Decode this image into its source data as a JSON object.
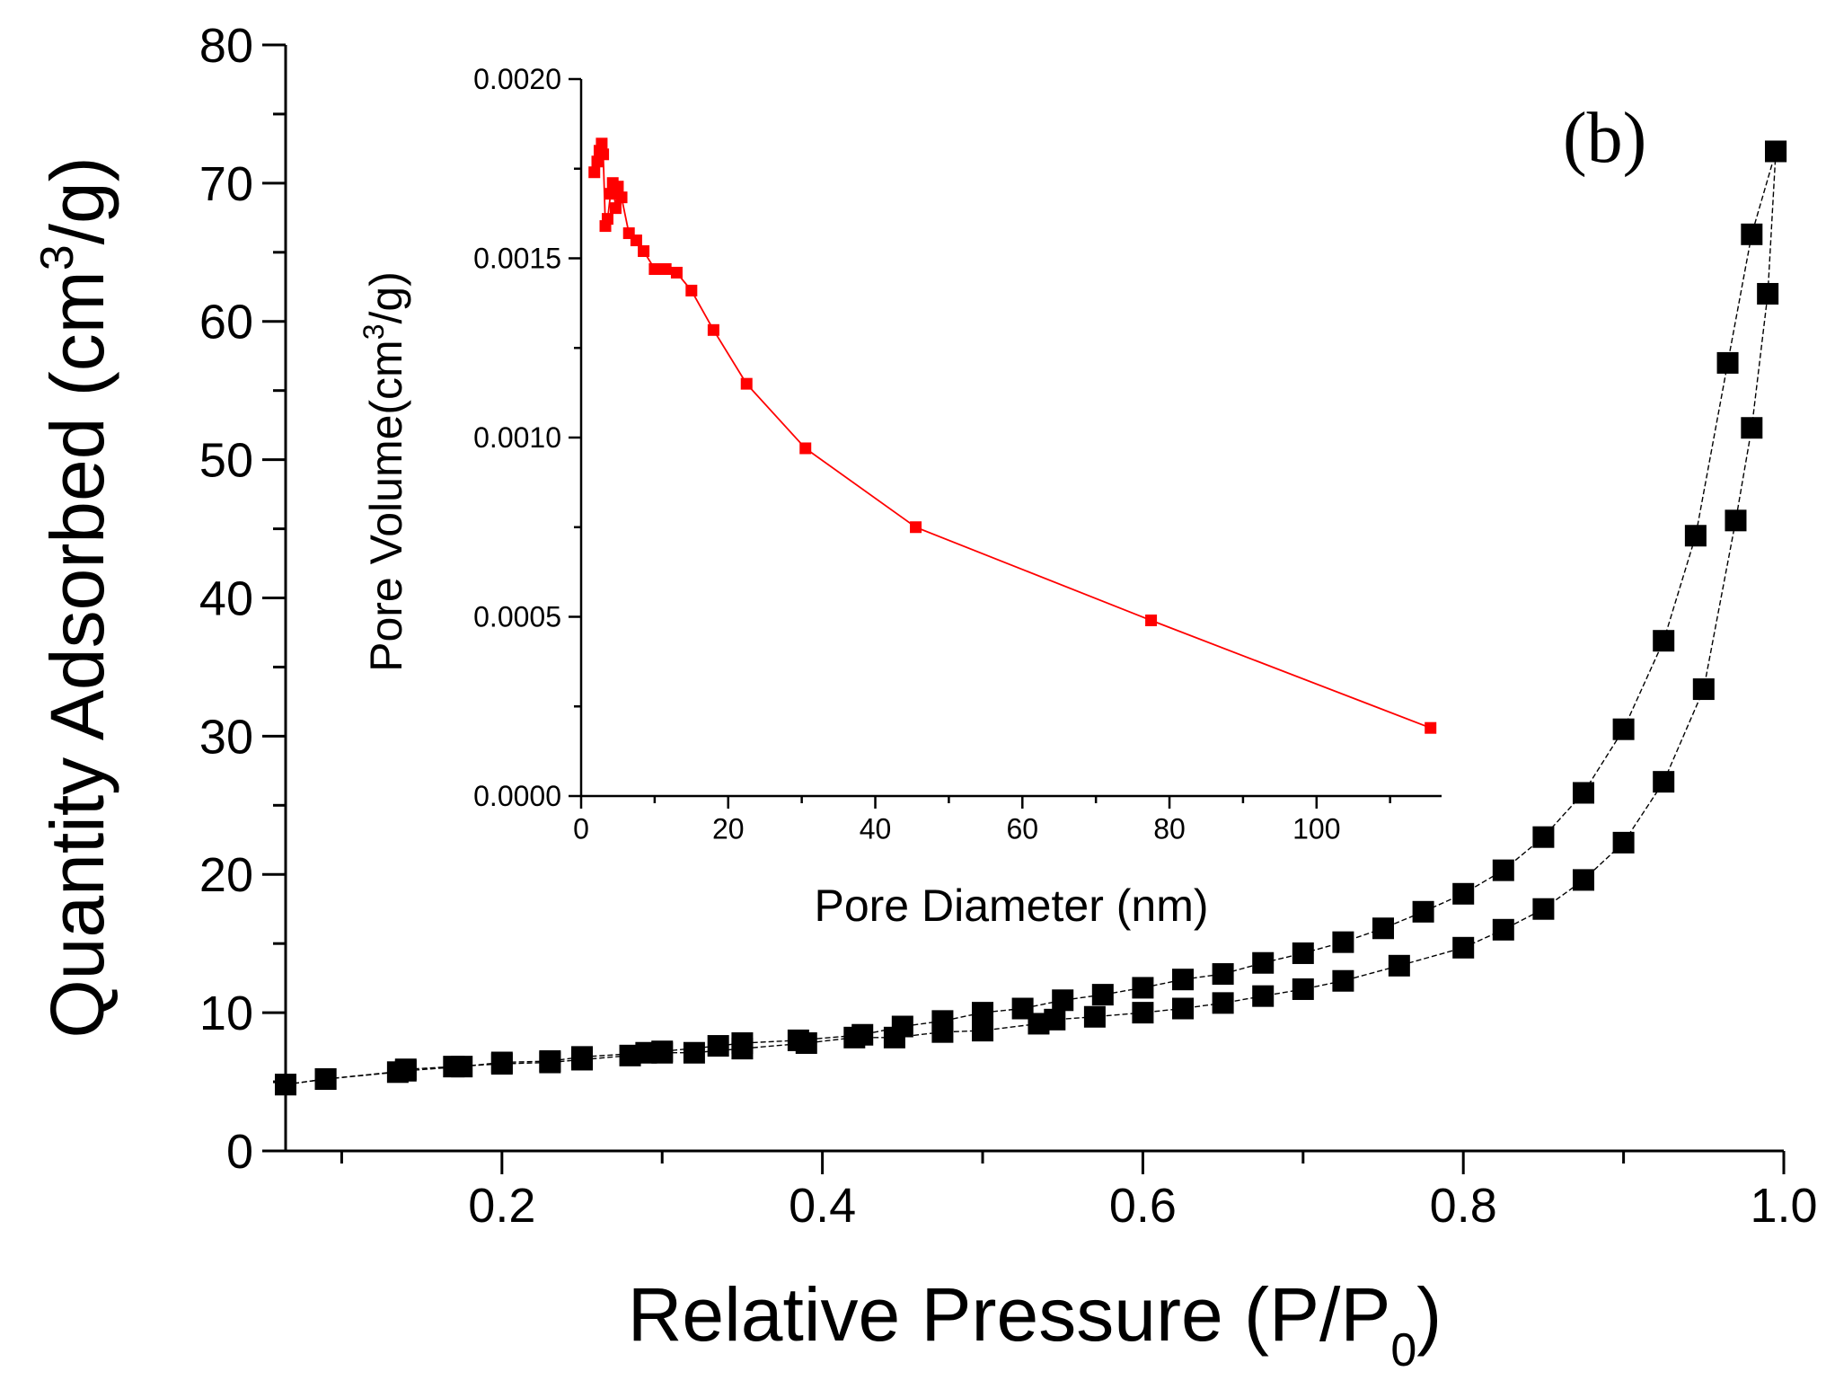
{
  "chart_data": [
    {
      "type": "scatter",
      "title": "",
      "panel_label": "(b)",
      "xlabel": "Relative Pressure (P/P",
      "xlabel_sub": "0",
      "xlabel_end": ")",
      "ylabel": "Quantity Adsorbed (cm",
      "ylabel_sup": "3",
      "ylabel_end": "/g)",
      "xlim": [
        0.065,
        1.0
      ],
      "ylim": [
        0,
        80
      ],
      "x_ticks": [
        0.2,
        0.4,
        0.6,
        0.8,
        1.0
      ],
      "x_tick_labels": [
        "0.2",
        "0.4",
        "0.6",
        "0.8",
        "1.0"
      ],
      "y_ticks": [
        0,
        10,
        20,
        30,
        40,
        50,
        60,
        70,
        80
      ],
      "y_tick_labels": [
        "0",
        "10",
        "20",
        "30",
        "40",
        "50",
        "60",
        "70",
        "80"
      ],
      "marker": "square",
      "color": "#000000",
      "series": [
        {
          "points": [
            [
              0.065,
              4.8
            ],
            [
              0.09,
              5.2
            ],
            [
              0.135,
              5.7
            ],
            [
              0.14,
              5.9
            ],
            [
              0.17,
              6.1
            ],
            [
              0.2,
              6.3
            ],
            [
              0.23,
              6.4
            ],
            [
              0.25,
              6.6
            ],
            [
              0.28,
              6.9
            ],
            [
              0.3,
              7.1
            ],
            [
              0.32,
              7.1
            ],
            [
              0.35,
              7.4
            ],
            [
              0.39,
              7.8
            ],
            [
              0.42,
              8.2
            ],
            [
              0.445,
              8.2
            ],
            [
              0.475,
              8.6
            ],
            [
              0.5,
              8.7
            ],
            [
              0.535,
              9.2
            ],
            [
              0.545,
              9.5
            ],
            [
              0.57,
              9.7
            ],
            [
              0.6,
              10.0
            ],
            [
              0.625,
              10.3
            ],
            [
              0.65,
              10.7
            ],
            [
              0.675,
              11.2
            ],
            [
              0.7,
              11.7
            ],
            [
              0.725,
              12.3
            ],
            [
              0.76,
              13.4
            ],
            [
              0.8,
              14.7
            ],
            [
              0.825,
              16.0
            ],
            [
              0.85,
              17.5
            ],
            [
              0.875,
              19.6
            ],
            [
              0.9,
              22.3
            ],
            [
              0.925,
              26.7
            ],
            [
              0.95,
              33.4
            ],
            [
              0.97,
              45.6
            ],
            [
              0.98,
              52.3
            ],
            [
              0.99,
              62.0
            ],
            [
              0.995,
              72.3
            ]
          ]
        },
        {
          "points": [
            [
              0.065,
              4.8
            ],
            [
              0.09,
              5.2
            ],
            [
              0.14,
              5.8
            ],
            [
              0.175,
              6.1
            ],
            [
              0.2,
              6.4
            ],
            [
              0.23,
              6.5
            ],
            [
              0.25,
              6.8
            ],
            [
              0.29,
              7.1
            ],
            [
              0.3,
              7.2
            ],
            [
              0.335,
              7.6
            ],
            [
              0.35,
              7.8
            ],
            [
              0.385,
              8.0
            ],
            [
              0.425,
              8.4
            ],
            [
              0.45,
              9.0
            ],
            [
              0.475,
              9.4
            ],
            [
              0.5,
              10.0
            ],
            [
              0.525,
              10.3
            ],
            [
              0.55,
              10.9
            ],
            [
              0.575,
              11.3
            ],
            [
              0.6,
              11.8
            ],
            [
              0.625,
              12.4
            ],
            [
              0.65,
              12.8
            ],
            [
              0.675,
              13.6
            ],
            [
              0.7,
              14.3
            ],
            [
              0.725,
              15.1
            ],
            [
              0.75,
              16.1
            ],
            [
              0.775,
              17.3
            ],
            [
              0.8,
              18.6
            ],
            [
              0.825,
              20.3
            ],
            [
              0.85,
              22.7
            ],
            [
              0.875,
              25.9
            ],
            [
              0.9,
              30.5
            ],
            [
              0.925,
              36.9
            ],
            [
              0.945,
              44.5
            ],
            [
              0.965,
              57.0
            ],
            [
              0.98,
              66.3
            ],
            [
              0.995,
              72.3
            ]
          ]
        }
      ]
    },
    {
      "type": "line",
      "title": "",
      "xlabel": "Pore Diameter (nm)",
      "ylabel": "Pore Volume(cm",
      "ylabel_sup": "3",
      "ylabel_end": "/g)",
      "xlim": [
        0,
        117
      ],
      "ylim": [
        0,
        0.002
      ],
      "x_ticks": [
        0,
        20,
        40,
        60,
        80,
        100
      ],
      "x_tick_labels": [
        "0",
        "20",
        "40",
        "60",
        "80",
        "100"
      ],
      "y_ticks": [
        0,
        0.0005,
        0.001,
        0.0015,
        0.002
      ],
      "y_tick_labels": [
        "0.0000",
        "0.0005",
        "0.0010",
        "0.0015",
        "0.0020"
      ],
      "marker": "square",
      "color": "#ff0000",
      "series": [
        {
          "points": [
            [
              1.8,
              0.00174
            ],
            [
              2.2,
              0.00177
            ],
            [
              2.5,
              0.0018
            ],
            [
              2.8,
              0.00182
            ],
            [
              3.0,
              0.00179
            ],
            [
              3.3,
              0.00159
            ],
            [
              3.6,
              0.00161
            ],
            [
              4.0,
              0.00168
            ],
            [
              4.3,
              0.00171
            ],
            [
              4.7,
              0.00164
            ],
            [
              5.0,
              0.0017
            ],
            [
              5.5,
              0.00167
            ],
            [
              6.5,
              0.00157
            ],
            [
              7.5,
              0.00155
            ],
            [
              8.5,
              0.00152
            ],
            [
              10.0,
              0.00147
            ],
            [
              11.5,
              0.00147
            ],
            [
              13.0,
              0.00146
            ],
            [
              15.0,
              0.00141
            ],
            [
              18.0,
              0.0013
            ],
            [
              22.5,
              0.00115
            ],
            [
              30.5,
              0.00097
            ],
            [
              45.5,
              0.00075
            ],
            [
              77.5,
              0.00049
            ],
            [
              115.5,
              0.00019
            ]
          ]
        }
      ]
    }
  ]
}
